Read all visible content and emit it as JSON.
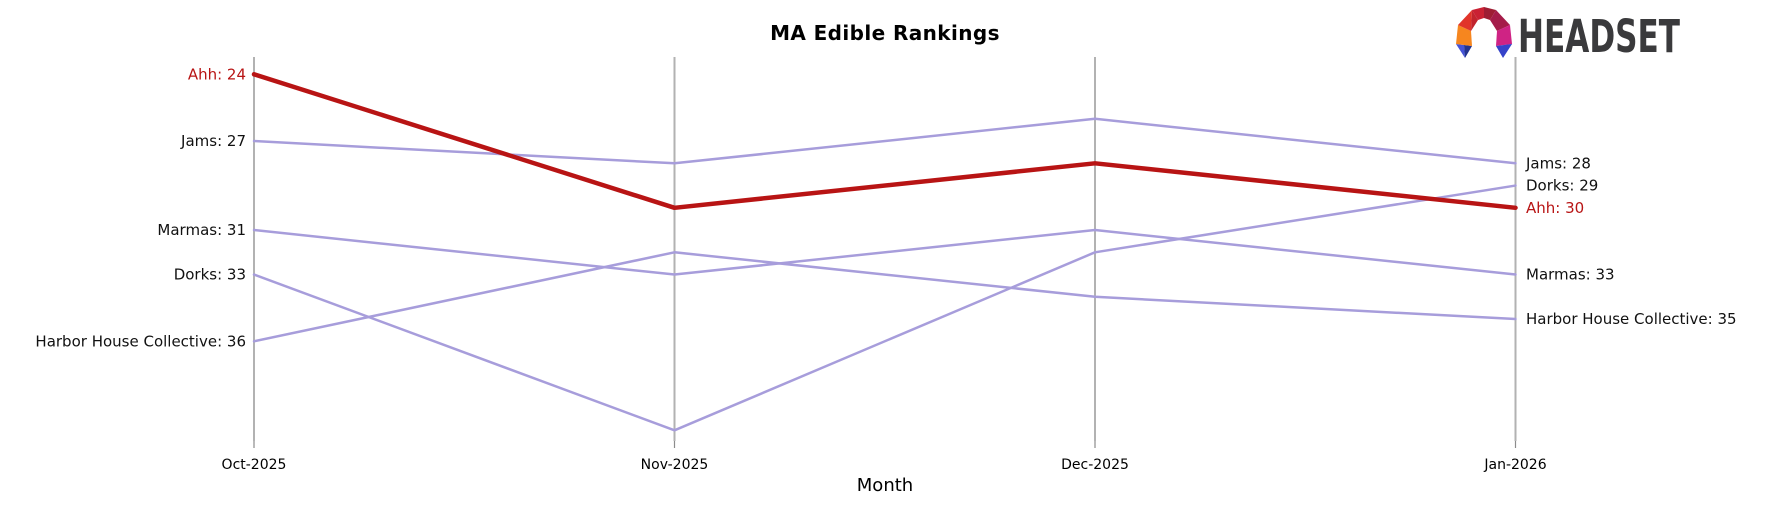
{
  "title": "MA Edible Rankings",
  "logo": {
    "brand": "HEADSET"
  },
  "chart_data": {
    "type": "line",
    "variant": "bump-ranking",
    "title": "MA Edible Rankings",
    "xlabel": "Month",
    "x_categories": [
      "Oct-2025",
      "Nov-2025",
      "Dec-2025",
      "Jan-2026"
    ],
    "y_axis": {
      "unit": "rank",
      "direction": "lower-rank-is-higher-on-screen",
      "visible_rank_range": [
        24,
        40
      ],
      "gridlines": "vertical-month-axes-only"
    },
    "series": [
      {
        "name": "Ahh",
        "values": [
          24,
          30,
          28,
          30
        ],
        "color": "#b81414",
        "width": 4.5,
        "highlighted": true
      },
      {
        "name": "Jams",
        "values": [
          27,
          28,
          26,
          28
        ],
        "color": "#a79ddb",
        "width": 2.5,
        "highlighted": false
      },
      {
        "name": "Marmas",
        "values": [
          31,
          33,
          31,
          33
        ],
        "color": "#a79ddb",
        "width": 2.5,
        "highlighted": false
      },
      {
        "name": "Dorks",
        "values": [
          33,
          40,
          32,
          29
        ],
        "color": "#a79ddb",
        "width": 2.5,
        "highlighted": false
      },
      {
        "name": "Harbor House Collective",
        "values": [
          36,
          32,
          34,
          35
        ],
        "color": "#a79ddb",
        "width": 2.5,
        "highlighted": false
      }
    ],
    "left_labels": [
      {
        "text": "Ahh: 24",
        "rank": 24,
        "color": "#b81414"
      },
      {
        "text": "Jams: 27",
        "rank": 27,
        "color": "#111111"
      },
      {
        "text": "Marmas: 31",
        "rank": 31,
        "color": "#111111"
      },
      {
        "text": "Dorks: 33",
        "rank": 33,
        "color": "#111111"
      },
      {
        "text": "Harbor House Collective: 36",
        "rank": 36,
        "color": "#111111"
      }
    ],
    "right_labels": [
      {
        "text": "Jams: 28",
        "rank": 28,
        "color": "#111111"
      },
      {
        "text": "Dorks: 29",
        "rank": 29,
        "color": "#111111"
      },
      {
        "text": "Ahh: 30",
        "rank": 30,
        "color": "#b81414"
      },
      {
        "text": "Marmas: 33",
        "rank": 33,
        "color": "#111111"
      },
      {
        "text": "Harbor House Collective: 35",
        "rank": 35,
        "color": "#111111"
      }
    ],
    "axis_color": "#b2b2b2",
    "tick_color": "#8c8c8c",
    "legend_position": "none"
  }
}
